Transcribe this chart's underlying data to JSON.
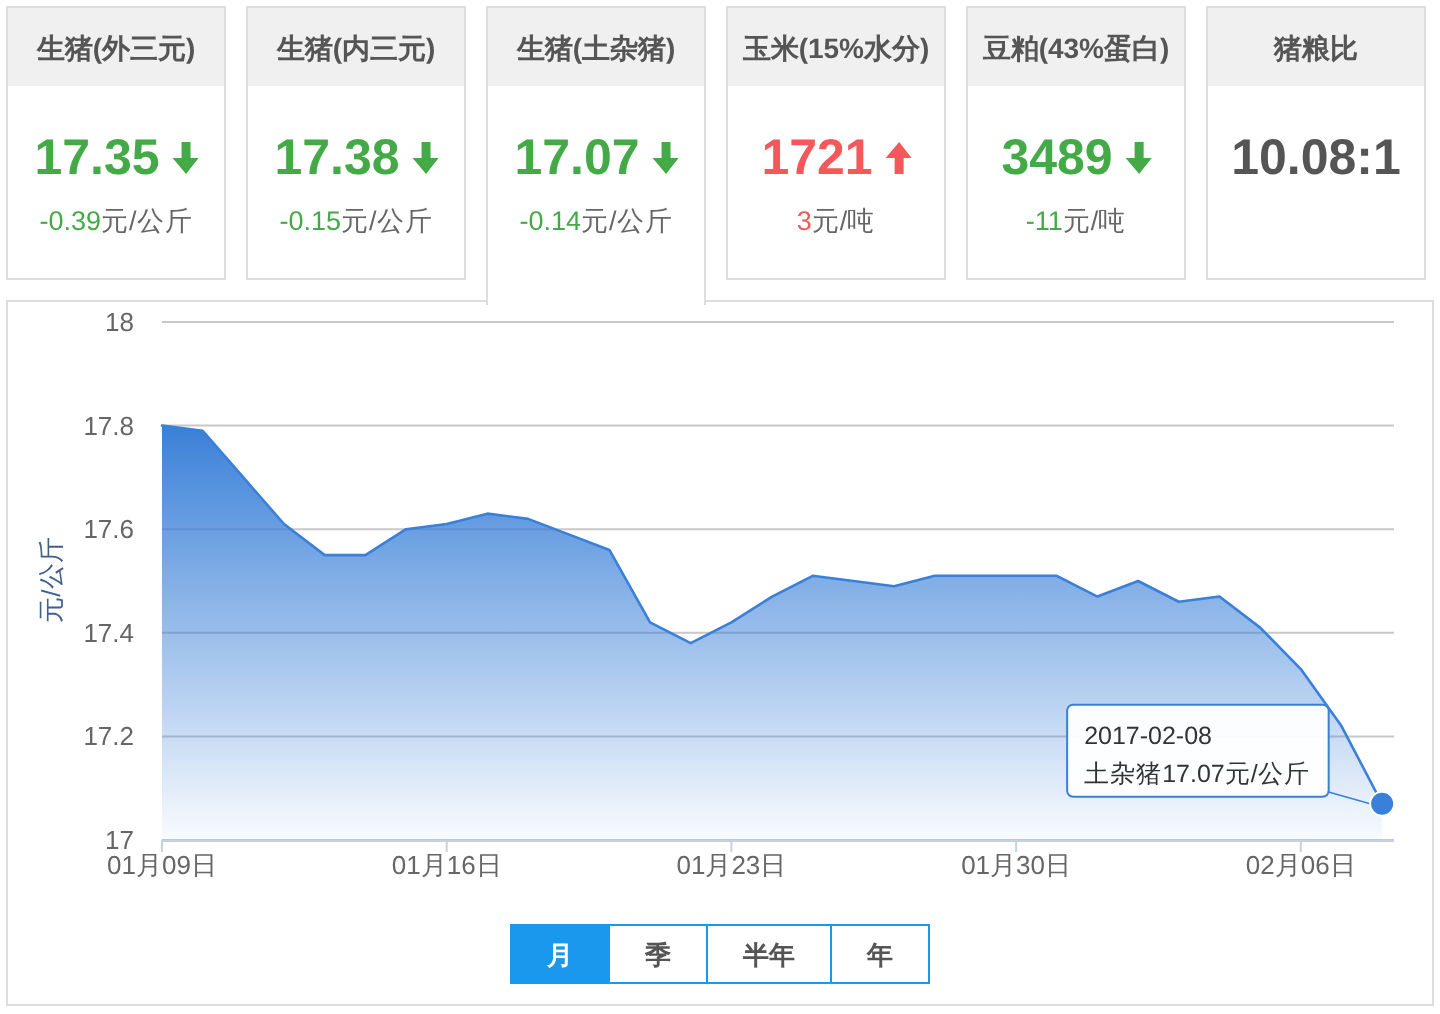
{
  "chart_data": [
    {
      "type": "other",
      "title": "生猪(外三元)",
      "values": [
        17.35,
        -0.39
      ],
      "data_labels": true,
      "annotations": [
        "元/公斤"
      ],
      "color": "#43aa47"
    },
    {
      "type": "other",
      "title": "生猪(内三元)",
      "values": [
        17.38,
        -0.15
      ],
      "data_labels": true,
      "annotations": [
        "元/公斤"
      ],
      "color": "#43aa47"
    },
    {
      "type": "other",
      "title": "生猪(土杂猪)",
      "values": [
        17.07,
        -0.14
      ],
      "data_labels": true,
      "annotations": [
        "元/公斤"
      ],
      "color": "#43aa47"
    },
    {
      "type": "other",
      "title": "玉米(15%水分)",
      "values": [
        1721,
        3
      ],
      "data_labels": true,
      "annotations": [
        "元/吨"
      ],
      "color": "#f5585b"
    },
    {
      "type": "other",
      "title": "豆粕(43%蛋白)",
      "values": [
        3489,
        -11
      ],
      "data_labels": true,
      "annotations": [
        "元/吨"
      ],
      "color": "#43aa47"
    },
    {
      "type": "other",
      "title": "猪粮比",
      "annotations": [
        "10.08:1"
      ],
      "color": "#555555"
    },
    {
      "type": "area",
      "x": [
        "2017-01-09",
        "2017-01-10",
        "2017-01-11",
        "2017-01-12",
        "2017-01-13",
        "2017-01-14",
        "2017-01-15",
        "2017-01-16",
        "2017-01-17",
        "2017-01-18",
        "2017-01-19",
        "2017-01-20",
        "2017-01-21",
        "2017-01-22",
        "2017-01-23",
        "2017-01-24",
        "2017-01-25",
        "2017-01-26",
        "2017-01-27",
        "2017-01-28",
        "2017-01-29",
        "2017-01-30",
        "2017-01-31",
        "2017-02-01",
        "2017-02-02",
        "2017-02-03",
        "2017-02-04",
        "2017-02-05",
        "2017-02-06",
        "2017-02-07",
        "2017-02-08"
      ],
      "values": [
        17.8,
        17.79,
        17.7,
        17.61,
        17.55,
        17.55,
        17.6,
        17.61,
        17.63,
        17.62,
        17.59,
        17.56,
        17.42,
        17.38,
        17.42,
        17.47,
        17.51,
        17.5,
        17.49,
        17.51,
        17.51,
        17.51,
        17.51,
        17.47,
        17.5,
        17.46,
        17.47,
        17.41,
        17.33,
        17.22,
        17.07
      ],
      "color": "#3a80d8",
      "xlim": [
        "2017-01-09",
        "2017-02-08T07:00"
      ],
      "xticks": [
        {
          "value": "2017-01-09",
          "label": "01月09日"
        },
        {
          "value": "2017-01-16",
          "label": "01月16日"
        },
        {
          "value": "2017-01-23",
          "label": "01月23日"
        },
        {
          "value": "2017-01-30",
          "label": "01月30日"
        },
        {
          "value": "2017-02-06",
          "label": "02月06日"
        }
      ],
      "ylim": [
        17,
        18
      ],
      "yticks": [
        17,
        17.2,
        17.4,
        17.6,
        17.8,
        18
      ],
      "ylabel": "元/公斤",
      "grid": "y",
      "annotations": [
        {
          "text": "2017-02-08\n土杂猪17.07元/公斤",
          "x": "2017-02-08",
          "y": 17.07
        },
        "月",
        "季",
        "半年",
        "年"
      ]
    }
  ]
}
